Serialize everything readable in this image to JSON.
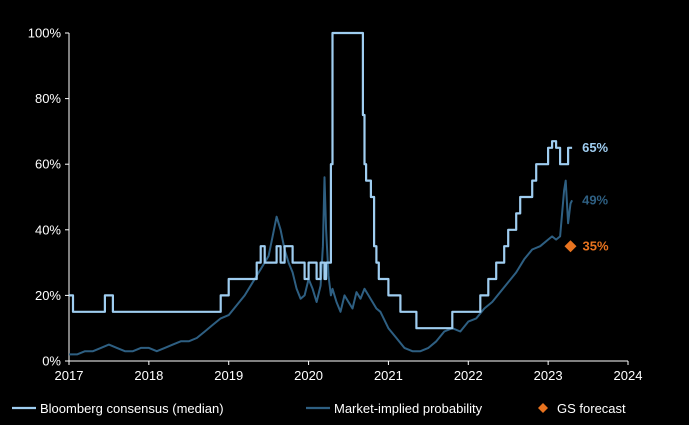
{
  "chart_data": {
    "type": "line",
    "xlim": [
      2017,
      2024
    ],
    "ylim": [
      0,
      100
    ],
    "x_ticks": [
      "2017",
      "2018",
      "2019",
      "2020",
      "2021",
      "2022",
      "2023",
      "2024"
    ],
    "y_ticks": [
      "0%",
      "20%",
      "40%",
      "60%",
      "80%",
      "100%"
    ],
    "grid": false,
    "legend_position": "bottom",
    "series": [
      {
        "name": "Bloomberg consensus (median)",
        "style": "step",
        "color": "#9fcdf0",
        "end_label": "65%",
        "x": [
          2017.0,
          2017.05,
          2017.45,
          2017.5,
          2017.52,
          2017.55,
          2018.9,
          2019.0,
          2019.05,
          2019.35,
          2019.4,
          2019.45,
          2019.5,
          2019.6,
          2019.65,
          2019.7,
          2019.8,
          2019.85,
          2019.9,
          2019.95,
          2020.0,
          2020.05,
          2020.1,
          2020.15,
          2020.2,
          2020.22,
          2020.28,
          2020.3,
          2020.35,
          2020.68,
          2020.7,
          2020.72,
          2020.78,
          2020.82,
          2020.85,
          2020.88,
          2020.9,
          2020.95,
          2021.0,
          2021.05,
          2021.1,
          2021.15,
          2021.2,
          2021.25,
          2021.3,
          2021.35,
          2021.4,
          2021.45,
          2021.5,
          2021.55,
          2021.6,
          2021.65,
          2021.7,
          2021.75,
          2021.8,
          2021.85,
          2021.9,
          2022.0,
          2022.1,
          2022.15,
          2022.2,
          2022.25,
          2022.3,
          2022.35,
          2022.4,
          2022.45,
          2022.5,
          2022.55,
          2022.6,
          2022.65,
          2022.7,
          2022.75,
          2022.8,
          2022.85,
          2022.9,
          2022.95,
          2023.0,
          2023.05,
          2023.1,
          2023.15,
          2023.2,
          2023.25,
          2023.3
        ],
        "y": [
          20,
          15,
          20,
          20,
          20,
          15,
          20,
          25,
          25,
          30,
          35,
          30,
          30,
          35,
          30,
          35,
          30,
          30,
          30,
          25,
          30,
          30,
          25,
          30,
          25,
          30,
          60,
          100,
          100,
          75,
          60,
          55,
          50,
          35,
          30,
          25,
          25,
          25,
          20,
          20,
          20,
          15,
          15,
          15,
          15,
          10,
          10,
          10,
          10,
          10,
          10,
          10,
          10,
          10,
          15,
          15,
          15,
          15,
          15,
          20,
          20,
          25,
          25,
          30,
          30,
          35,
          40,
          40,
          45,
          50,
          50,
          50,
          55,
          60,
          60,
          60,
          65,
          67,
          65,
          60,
          60,
          65,
          65
        ]
      },
      {
        "name": "Market-implied probability",
        "style": "line",
        "color": "#2e5f82",
        "end_label": "49%",
        "x": [
          2017.0,
          2017.1,
          2017.2,
          2017.3,
          2017.4,
          2017.5,
          2017.6,
          2017.7,
          2017.8,
          2017.9,
          2018.0,
          2018.1,
          2018.2,
          2018.3,
          2018.4,
          2018.5,
          2018.6,
          2018.7,
          2018.8,
          2018.9,
          2019.0,
          2019.1,
          2019.2,
          2019.3,
          2019.4,
          2019.5,
          2019.55,
          2019.6,
          2019.65,
          2019.7,
          2019.75,
          2019.8,
          2019.85,
          2019.9,
          2019.95,
          2020.0,
          2020.05,
          2020.1,
          2020.15,
          2020.18,
          2020.2,
          2020.22,
          2020.25,
          2020.28,
          2020.3,
          2020.35,
          2020.4,
          2020.45,
          2020.5,
          2020.55,
          2020.6,
          2020.65,
          2020.7,
          2020.75,
          2020.8,
          2020.85,
          2020.9,
          2021.0,
          2021.1,
          2021.2,
          2021.3,
          2021.4,
          2021.5,
          2021.6,
          2021.7,
          2021.8,
          2021.9,
          2022.0,
          2022.1,
          2022.2,
          2022.3,
          2022.4,
          2022.5,
          2022.6,
          2022.7,
          2022.8,
          2022.9,
          2023.0,
          2023.05,
          2023.1,
          2023.15,
          2023.2,
          2023.22,
          2023.25,
          2023.28,
          2023.3
        ],
        "y": [
          2,
          2,
          3,
          3,
          4,
          5,
          4,
          3,
          3,
          4,
          4,
          3,
          4,
          5,
          6,
          6,
          7,
          9,
          11,
          13,
          14,
          17,
          20,
          24,
          28,
          32,
          38,
          44,
          40,
          34,
          30,
          27,
          22,
          19,
          20,
          25,
          22,
          18,
          23,
          35,
          56,
          40,
          26,
          20,
          22,
          18,
          15,
          20,
          18,
          16,
          21,
          19,
          22,
          20,
          18,
          16,
          15,
          10,
          7,
          4,
          3,
          3,
          4,
          6,
          9,
          10,
          9,
          12,
          13,
          16,
          18,
          21,
          24,
          27,
          31,
          34,
          35,
          37,
          38,
          37,
          38,
          52,
          55,
          42,
          48,
          49
        ]
      }
    ],
    "gs_forecast": {
      "name": "GS forecast",
      "color": "#e8731f",
      "x": 2023.28,
      "y": 35,
      "label": "35%"
    }
  }
}
